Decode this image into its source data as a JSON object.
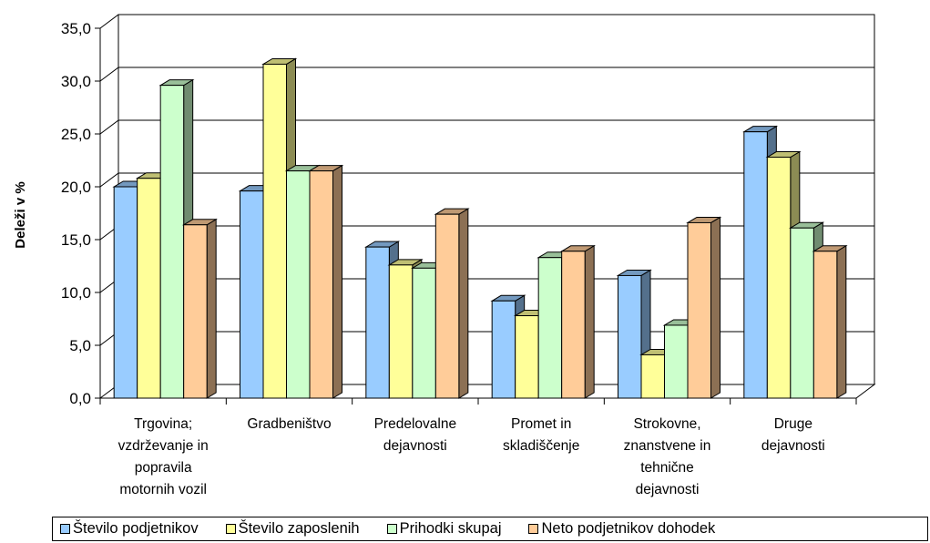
{
  "chart_data": {
    "type": "bar",
    "ylabel": "Deleži v %",
    "ylim": [
      0,
      35
    ],
    "yticks": [
      "0,0",
      "5,0",
      "10,0",
      "15,0",
      "20,0",
      "25,0",
      "30,0",
      "35,0"
    ],
    "grid": true,
    "legend_position": "bottom",
    "categories": [
      [
        "Trgovina;",
        "vzdrževanje in",
        "popravila",
        "motornih vozil"
      ],
      [
        "Gradbeništvo"
      ],
      [
        "Predelovalne",
        "dejavnosti"
      ],
      [
        "Promet in",
        "skladiščenje"
      ],
      [
        "Strokovne,",
        "znanstvene in",
        "tehnične",
        "dejavnosti"
      ],
      [
        "Druge",
        "dejavnosti"
      ]
    ],
    "series": [
      {
        "name": "Število podjetnikov",
        "color": "#99CCFF",
        "values": [
          20.0,
          19.6,
          14.3,
          9.2,
          11.6,
          25.2
        ]
      },
      {
        "name": "Število zaposlenih",
        "color": "#FFFF99",
        "values": [
          20.8,
          31.6,
          12.6,
          7.8,
          4.1,
          22.8
        ]
      },
      {
        "name": "Prihodki skupaj",
        "color": "#CCFFCC",
        "values": [
          29.6,
          21.5,
          12.3,
          13.3,
          6.9,
          16.1
        ]
      },
      {
        "name": "Neto podjetnikov dohodek",
        "color": "#FFCC99",
        "values": [
          16.4,
          21.5,
          17.4,
          13.9,
          16.6,
          13.9
        ]
      }
    ]
  }
}
